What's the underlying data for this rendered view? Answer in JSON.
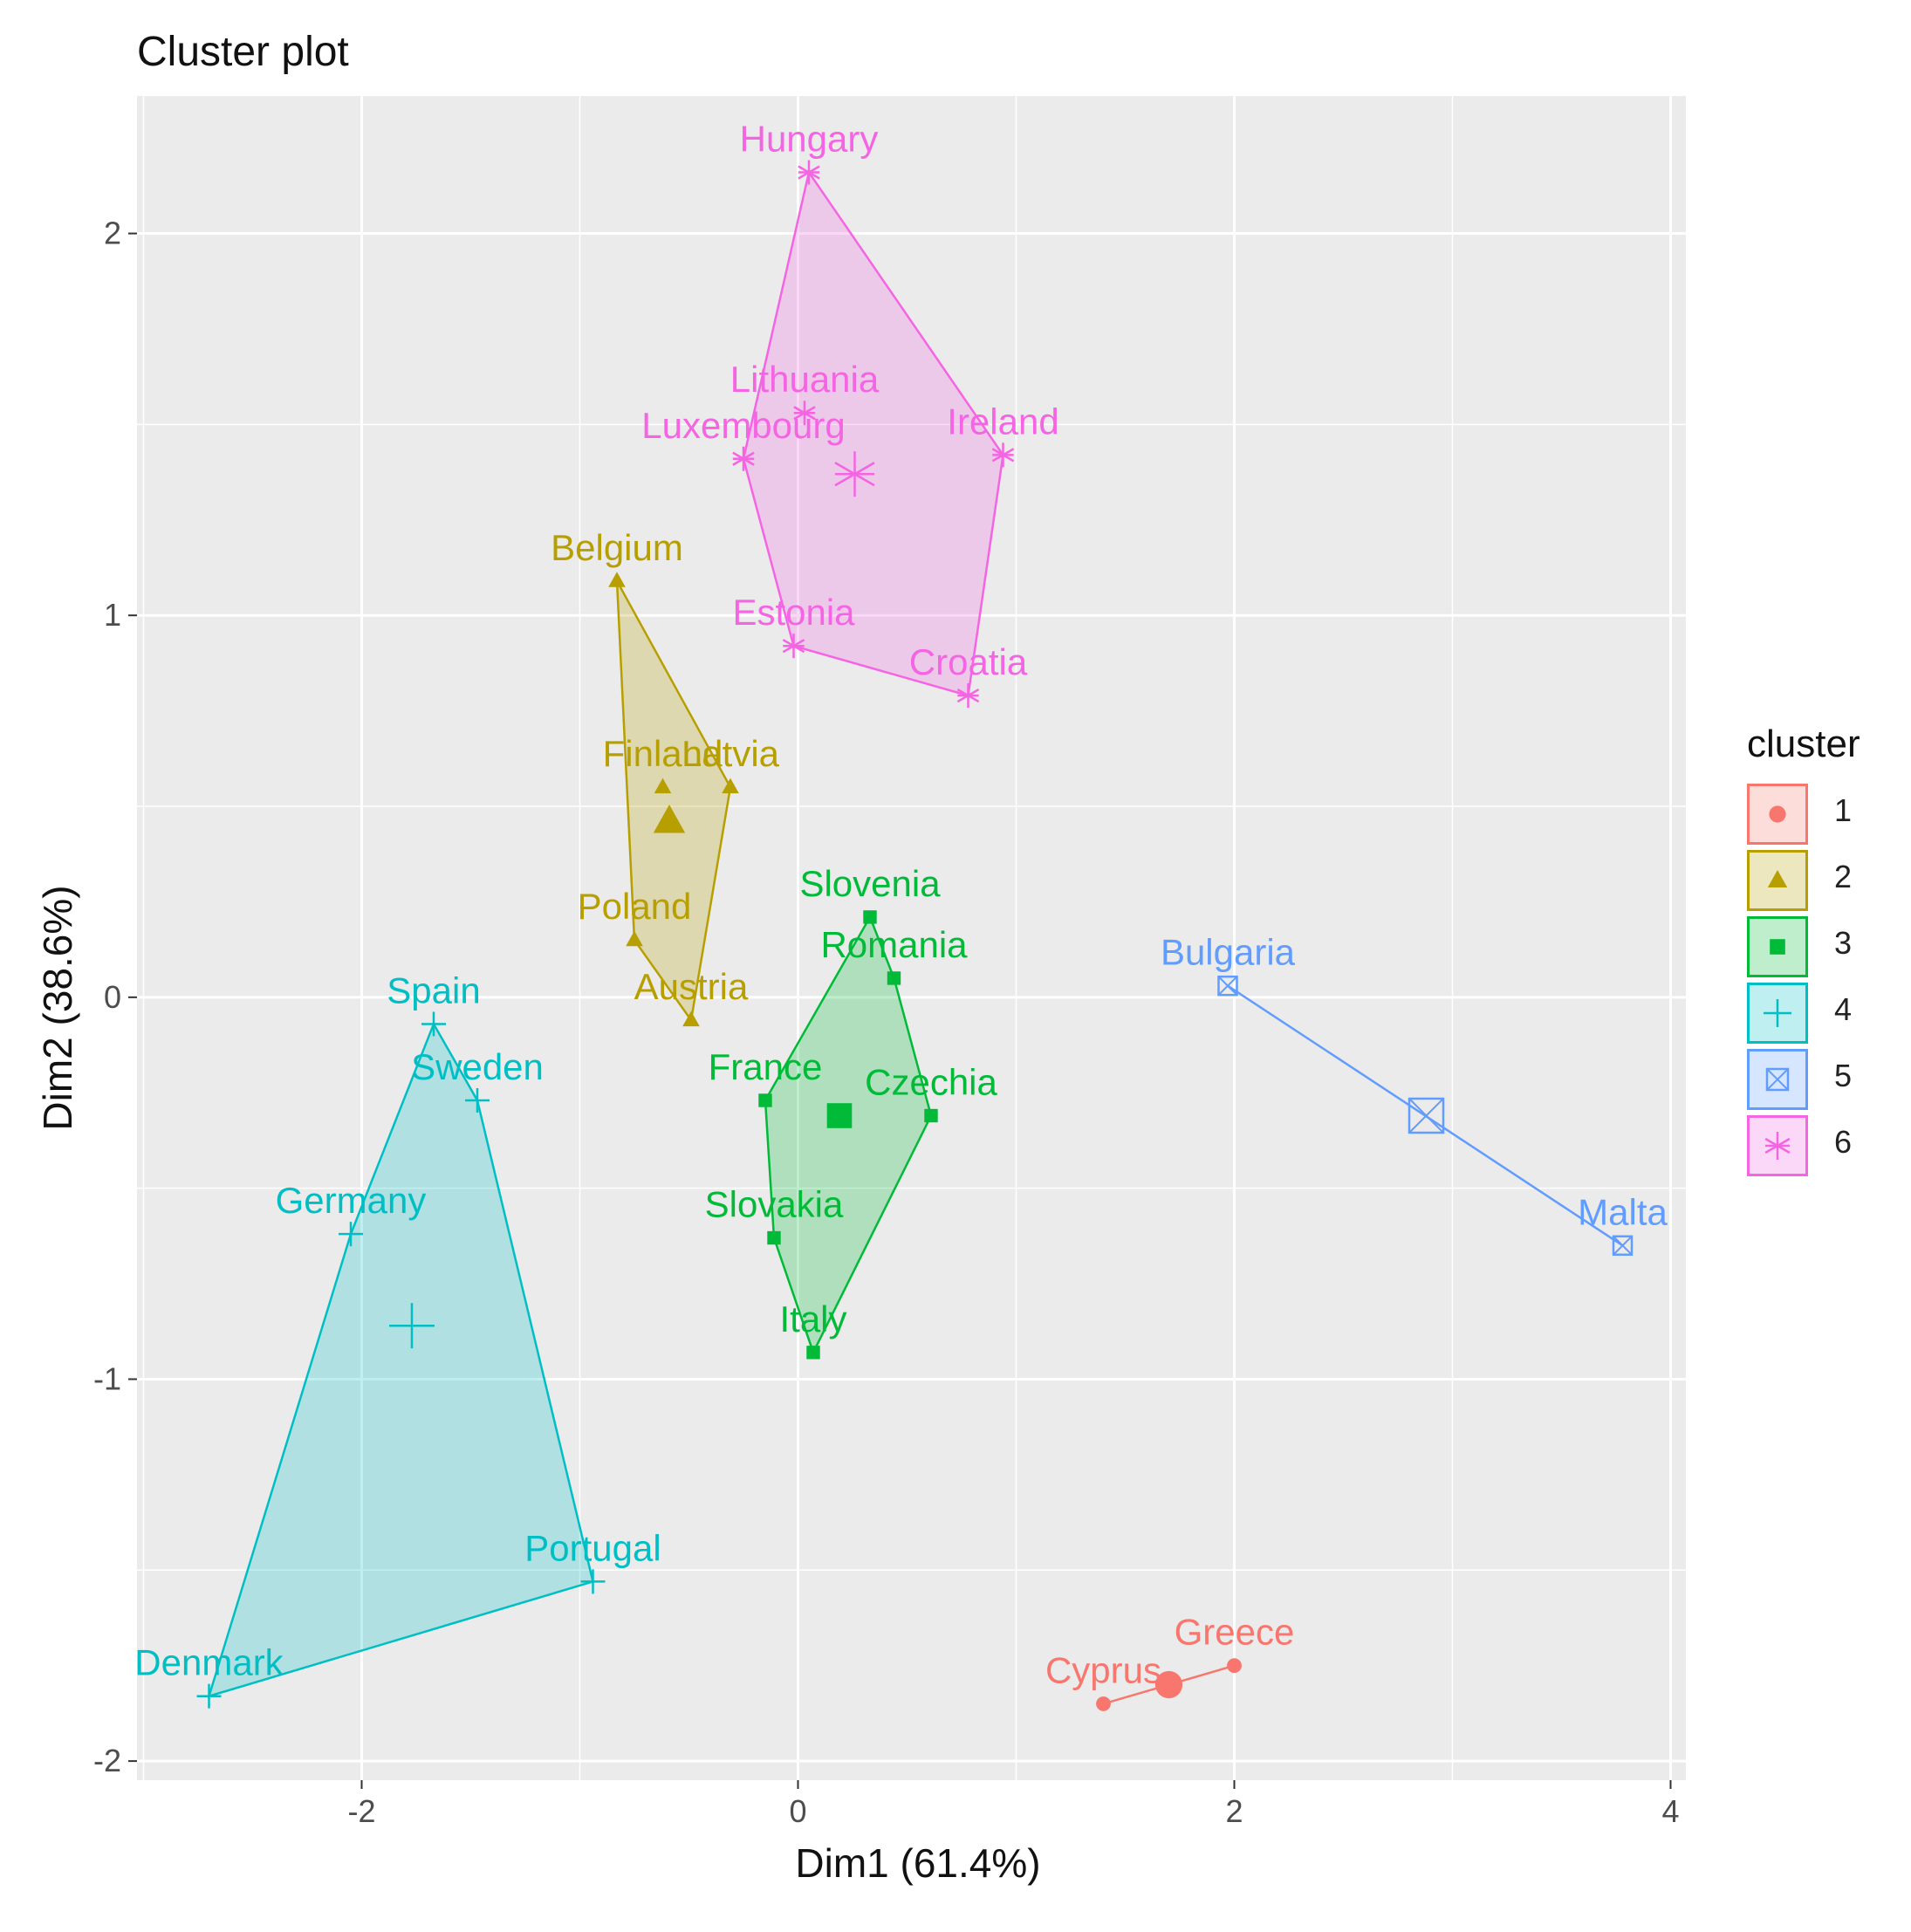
{
  "chart_data": {
    "type": "scatter",
    "title": "Cluster plot",
    "xlabel": "Dim1 (61.4%)",
    "ylabel": "Dim2 (38.6%)",
    "xlim": [
      -3.03,
      4.07
    ],
    "ylim": [
      -2.05,
      2.36
    ],
    "x_ticks": [
      -2,
      0,
      2,
      4
    ],
    "y_ticks": [
      -2,
      -1,
      0,
      1,
      2
    ],
    "grid": true,
    "legend": {
      "title": "cluster",
      "placement": "right"
    },
    "clusters": [
      {
        "name": "1",
        "color": "#F8766D",
        "shape": "circle",
        "centroid": {
          "x": 1.7,
          "y": -1.8
        },
        "points": [
          {
            "label": "Cyprus",
            "x": 1.4,
            "y": -1.85
          },
          {
            "label": "Greece",
            "x": 2.0,
            "y": -1.75
          }
        ]
      },
      {
        "name": "2",
        "color": "#B79F00",
        "shape": "triangle",
        "centroid": {
          "x": -0.59,
          "y": 0.46
        },
        "points": [
          {
            "label": "Belgium",
            "x": -0.83,
            "y": 1.09
          },
          {
            "label": "Finland",
            "x": -0.62,
            "y": 0.55
          },
          {
            "label": "Latvia",
            "x": -0.31,
            "y": 0.55
          },
          {
            "label": "Poland",
            "x": -0.75,
            "y": 0.15
          },
          {
            "label": "Austria",
            "x": -0.49,
            "y": -0.06
          }
        ]
      },
      {
        "name": "3",
        "color": "#00BA38",
        "shape": "square",
        "centroid": {
          "x": 0.19,
          "y": -0.31
        },
        "points": [
          {
            "label": "Slovenia",
            "x": 0.33,
            "y": 0.21
          },
          {
            "label": "Romania",
            "x": 0.44,
            "y": 0.05
          },
          {
            "label": "France",
            "x": -0.15,
            "y": -0.27
          },
          {
            "label": "Czechia",
            "x": 0.61,
            "y": -0.31
          },
          {
            "label": "Slovakia",
            "x": -0.11,
            "y": -0.63
          },
          {
            "label": "Italy",
            "x": 0.07,
            "y": -0.93
          }
        ]
      },
      {
        "name": "4",
        "color": "#00BFC4",
        "shape": "plus",
        "centroid": {
          "x": -1.77,
          "y": -0.86
        },
        "points": [
          {
            "label": "Spain",
            "x": -1.67,
            "y": -0.07
          },
          {
            "label": "Sweden",
            "x": -1.47,
            "y": -0.27
          },
          {
            "label": "Germany",
            "x": -2.05,
            "y": -0.62
          },
          {
            "label": "Portugal",
            "x": -0.94,
            "y": -1.53
          },
          {
            "label": "Denmark",
            "x": -2.7,
            "y": -1.83
          }
        ]
      },
      {
        "name": "5",
        "color": "#619CFF",
        "shape": "square-cross",
        "centroid": {
          "x": 2.88,
          "y": -0.31
        },
        "points": [
          {
            "label": "Bulgaria",
            "x": 1.97,
            "y": 0.03
          },
          {
            "label": "Malta",
            "x": 3.78,
            "y": -0.65
          }
        ]
      },
      {
        "name": "6",
        "color": "#F564E3",
        "shape": "asterisk",
        "centroid": {
          "x": 0.26,
          "y": 1.37
        },
        "points": [
          {
            "label": "Hungary",
            "x": 0.05,
            "y": 2.16
          },
          {
            "label": "Lithuania",
            "x": 0.03,
            "y": 1.53
          },
          {
            "label": "Luxembourg",
            "x": -0.25,
            "y": 1.41
          },
          {
            "label": "Ireland",
            "x": 0.94,
            "y": 1.42
          },
          {
            "label": "Estonia",
            "x": -0.02,
            "y": 0.92
          },
          {
            "label": "Croatia",
            "x": 0.78,
            "y": 0.79
          }
        ]
      }
    ]
  }
}
